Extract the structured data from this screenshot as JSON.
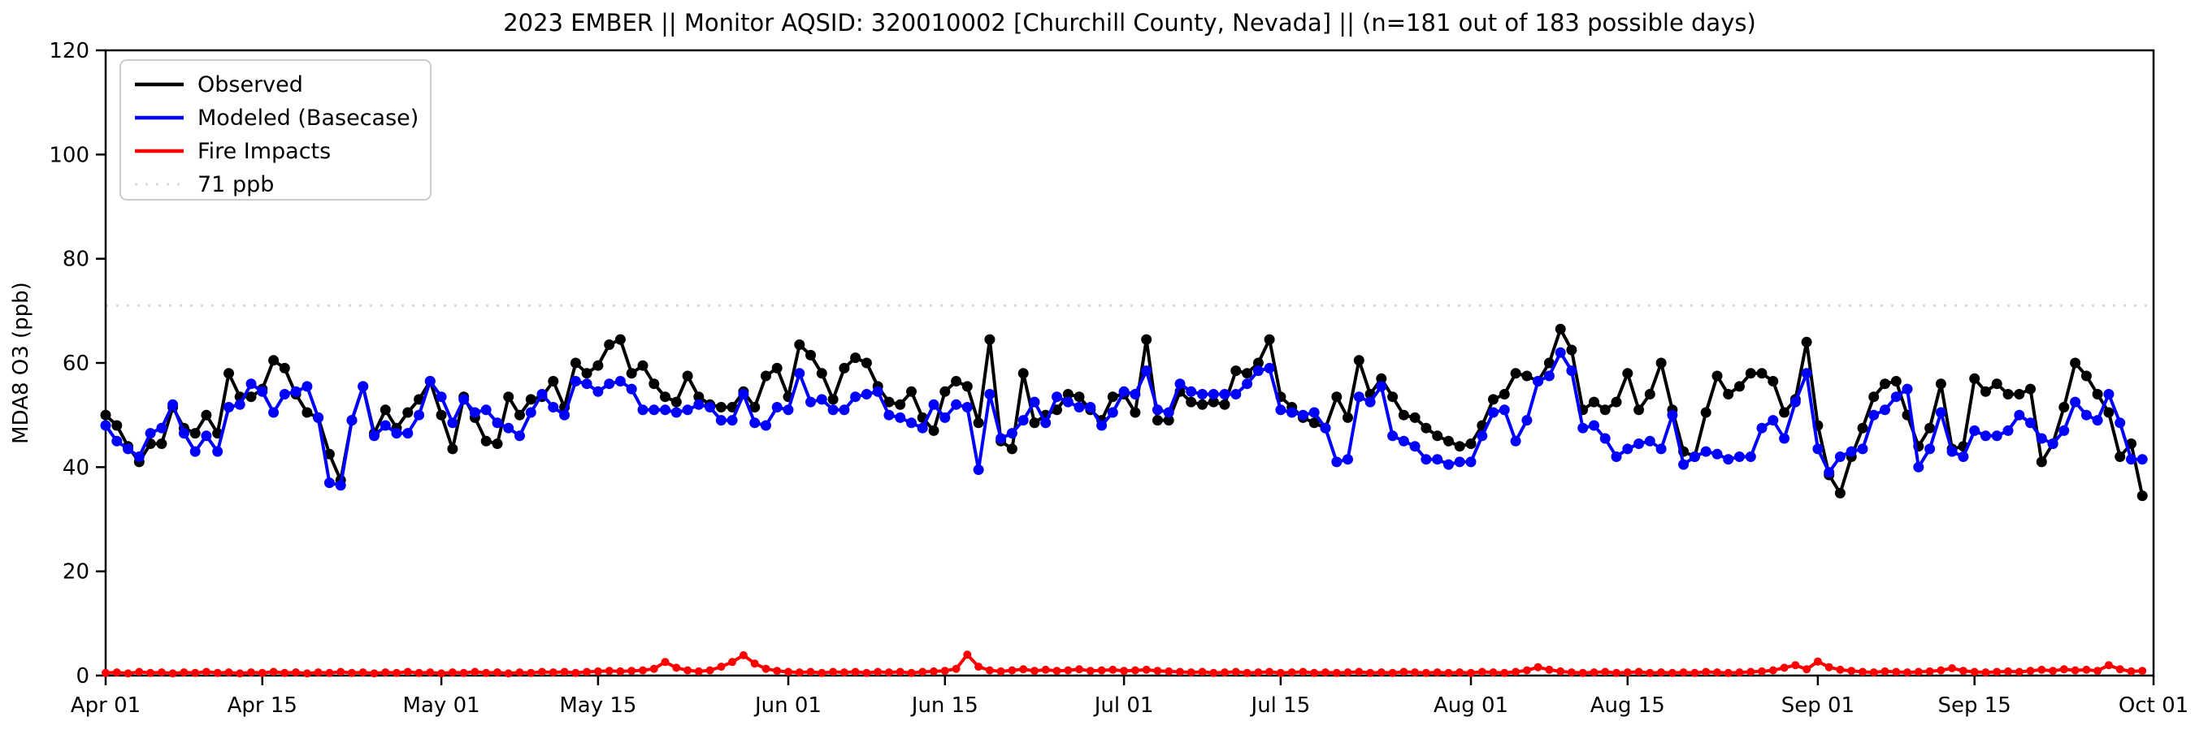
{
  "title": "2023 EMBER || Monitor AQSID: 320010002 [Churchill County, Nevada] || (n=181 out of 183 possible days)",
  "chart_data": {
    "type": "line",
    "title": "2023 EMBER || Monitor AQSID: 320010002 [Churchill County, Nevada] || (n=181 out of 183 possible days)",
    "xlabel": "",
    "ylabel": "MDA8 O3 (ppb)",
    "ylim": [
      0,
      120
    ],
    "yticks": [
      0,
      20,
      40,
      60,
      80,
      100,
      120
    ],
    "x_range_days": [
      0,
      183
    ],
    "x_tick_days": [
      0,
      14,
      30,
      44,
      61,
      75,
      91,
      105,
      122,
      136,
      153,
      167,
      183
    ],
    "x_tick_labels": [
      "Apr 01",
      "Apr 15",
      "May 01",
      "May 15",
      "Jun 01",
      "Jun 15",
      "Jul 01",
      "Jul 15",
      "Aug 01",
      "Aug 15",
      "Sep 01",
      "Sep 15",
      "Oct 01"
    ],
    "grid": false,
    "legend_position": "upper-left",
    "threshold": {
      "label": "71 ppb",
      "value": 71,
      "color": "#d9d9d9",
      "style": "dotted"
    },
    "legend": [
      {
        "label": "Observed",
        "color": "#000000",
        "style": "solid"
      },
      {
        "label": "Modeled (Basecase)",
        "color": "#0000ff",
        "style": "solid"
      },
      {
        "label": "Fire Impacts",
        "color": "#ff0000",
        "style": "solid"
      },
      {
        "label": "71 ppb",
        "color": "#d9d9d9",
        "style": "dotted"
      }
    ],
    "series": [
      {
        "name": "Observed",
        "color": "#000000",
        "marker": true,
        "values": [
          50,
          48,
          44,
          41,
          44.5,
          44.5,
          51.5,
          47.5,
          46.5,
          50,
          46.5,
          58,
          53.5,
          53.5,
          55,
          60.5,
          59,
          54,
          50.5,
          49.5,
          42.5,
          37.5,
          49,
          55.5,
          46.5,
          51,
          47.5,
          50.5,
          53,
          56.5,
          50,
          43.5,
          53.5,
          49.5,
          45,
          44.5,
          53.5,
          50,
          53,
          53.5,
          56.5,
          51.5,
          60,
          58,
          59.5,
          63.5,
          64.5,
          58,
          59.5,
          56,
          53.5,
          52.5,
          57.5,
          53.5,
          52,
          51.5,
          51.5,
          54.5,
          51.5,
          57.5,
          59,
          53.5,
          63.5,
          61.5,
          58,
          53,
          59,
          61,
          60,
          55.5,
          52.5,
          52,
          54.5,
          49.5,
          47,
          54.5,
          56.5,
          55.5,
          48.5,
          64.5,
          45,
          43.5,
          58,
          48.5,
          50,
          51,
          54,
          53.5,
          51,
          49,
          53.5,
          54,
          50.5,
          64.5,
          49,
          49,
          54.5,
          52.5,
          52,
          52.5,
          52,
          58.5,
          58,
          60,
          64.5,
          53.5,
          51.5,
          49.5,
          48.5,
          47.5,
          53.5,
          49.5,
          60.5,
          54,
          57,
          53.5,
          50,
          49.5,
          47.5,
          46,
          45,
          44,
          44.5,
          48,
          53,
          54,
          58,
          57.5,
          56.5,
          60,
          66.5,
          62.5,
          51,
          52.5,
          51,
          52.5,
          58,
          51,
          54,
          60,
          51,
          43,
          42,
          50.5,
          57.5,
          54,
          55.5,
          58,
          58,
          56.5,
          50.5,
          53,
          64,
          48,
          38.5,
          35,
          42,
          47.5,
          53.5,
          56,
          56.5,
          50,
          44,
          47.5,
          56,
          43.5,
          44,
          57,
          54.5,
          56,
          54,
          54,
          55,
          41,
          44.5,
          51.5,
          60,
          57.5,
          54,
          50.5,
          42,
          44.5,
          34.5
        ]
      },
      {
        "name": "Modeled (Basecase)",
        "color": "#0000ff",
        "marker": true,
        "values": [
          48,
          45,
          43.5,
          42,
          46.5,
          47.5,
          52,
          46.5,
          43,
          46,
          43,
          51.5,
          52,
          56,
          54.5,
          50.5,
          54,
          54.5,
          55.5,
          49.5,
          37,
          36.5,
          49,
          55.5,
          46,
          48,
          46.5,
          46.5,
          50,
          56.5,
          53.5,
          48.5,
          53,
          50.5,
          51,
          48.5,
          47.5,
          46,
          50.5,
          54,
          51.5,
          50,
          56.5,
          56,
          54.5,
          56,
          56.5,
          55,
          51,
          51,
          51,
          50.5,
          51,
          52,
          51.5,
          49,
          49,
          54,
          48.5,
          48,
          51.5,
          51,
          58,
          52.5,
          53,
          51,
          51,
          53.5,
          54,
          54.5,
          50,
          49.5,
          48.5,
          47.5,
          52,
          49.5,
          52,
          51.5,
          39.5,
          54,
          45.5,
          46.5,
          49,
          52.5,
          48.5,
          53.5,
          52.5,
          51.5,
          51.5,
          48,
          50.5,
          54.5,
          54,
          58.5,
          51,
          50.5,
          56,
          54.5,
          54,
          54,
          54,
          54,
          56,
          58.5,
          59,
          51,
          50.5,
          50,
          50.5,
          47.5,
          41,
          41.5,
          53.5,
          52.5,
          55.5,
          46,
          45,
          44,
          41.5,
          41.5,
          40.5,
          41,
          41,
          46,
          50.5,
          51,
          45,
          49,
          56.5,
          57.5,
          62,
          58.5,
          47.5,
          48,
          45.5,
          42,
          43.5,
          44.5,
          45,
          43.5,
          50,
          40.5,
          42,
          43,
          42.5,
          41.5,
          42,
          42,
          47.5,
          49,
          45.5,
          52.5,
          58,
          43.5,
          39,
          42,
          43,
          43.5,
          50,
          51,
          53.5,
          55,
          40,
          43.5,
          50.5,
          43,
          42,
          47,
          46,
          46,
          47,
          50,
          48.5,
          45.5,
          44.5,
          47,
          52.5,
          50,
          49,
          54,
          48.5,
          41.5,
          41.5
        ]
      },
      {
        "name": "Fire Impacts",
        "color": "#ff0000",
        "marker": true,
        "values": [
          0.5,
          0.6,
          0.4,
          0.7,
          0.5,
          0.6,
          0.4,
          0.6,
          0.5,
          0.7,
          0.5,
          0.6,
          0.4,
          0.6,
          0.5,
          0.7,
          0.5,
          0.6,
          0.4,
          0.6,
          0.5,
          0.7,
          0.5,
          0.6,
          0.4,
          0.6,
          0.5,
          0.7,
          0.5,
          0.6,
          0.4,
          0.6,
          0.5,
          0.7,
          0.5,
          0.6,
          0.4,
          0.6,
          0.5,
          0.7,
          0.6,
          0.7,
          0.5,
          0.7,
          0.8,
          0.9,
          0.8,
          0.9,
          1.0,
          1.3,
          2.6,
          1.5,
          1.0,
          0.8,
          1.0,
          1.7,
          2.6,
          3.9,
          2.3,
          1.3,
          0.9,
          0.7,
          0.6,
          0.7,
          0.5,
          0.7,
          0.6,
          0.7,
          0.5,
          0.7,
          0.6,
          0.7,
          0.5,
          0.7,
          0.8,
          0.9,
          1.3,
          4.0,
          1.7,
          1.0,
          0.8,
          1.0,
          1.2,
          0.9,
          1.1,
          0.9,
          1.0,
          1.2,
          0.9,
          1.0,
          1.1,
          0.9,
          1.0,
          1.1,
          0.9,
          0.8,
          0.7,
          0.6,
          0.7,
          0.5,
          0.6,
          0.7,
          0.5,
          0.6,
          0.7,
          0.5,
          0.6,
          0.7,
          0.5,
          0.6,
          0.5,
          0.6,
          0.7,
          0.5,
          0.6,
          0.5,
          0.7,
          0.6,
          0.5,
          0.6,
          0.5,
          0.6,
          0.5,
          0.7,
          0.6,
          0.5,
          0.7,
          1.0,
          1.6,
          1.1,
          0.8,
          0.6,
          0.5,
          0.6,
          0.7,
          0.5,
          0.6,
          0.7,
          0.5,
          0.6,
          0.5,
          0.6,
          0.5,
          0.7,
          0.6,
          0.5,
          0.6,
          0.7,
          0.8,
          1.0,
          1.5,
          2.0,
          1.2,
          2.7,
          1.6,
          1.1,
          0.9,
          0.7,
          0.6,
          0.8,
          0.7,
          0.6,
          0.7,
          0.8,
          1.0,
          1.4,
          0.9,
          0.7,
          0.6,
          0.7,
          0.8,
          0.7,
          0.9,
          1.1,
          0.9,
          1.2,
          1.0,
          1.1,
          0.9,
          2.0,
          1.2,
          0.8,
          0.9
        ]
      }
    ]
  },
  "layout_colors": {
    "background": "#ffffff",
    "axis": "#000000",
    "legend_border": "#cccccc"
  }
}
